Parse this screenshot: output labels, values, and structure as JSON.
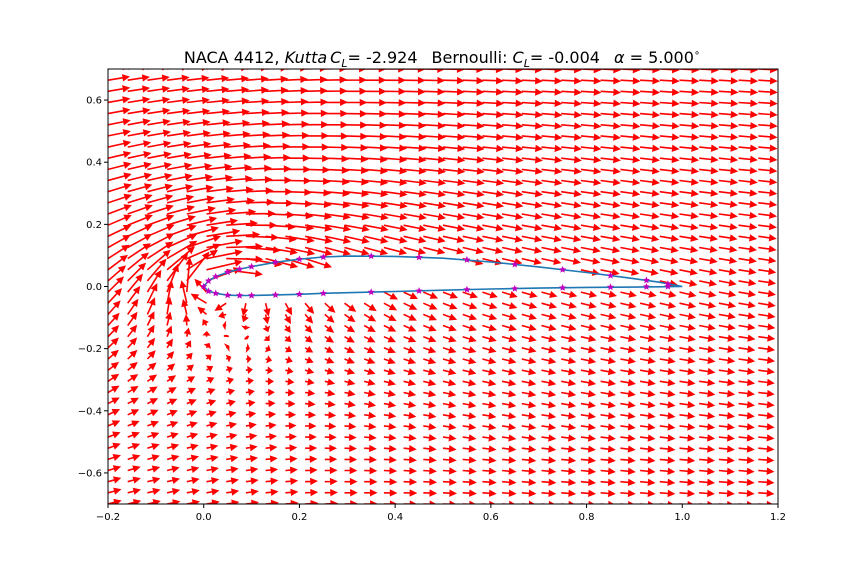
{
  "chart_data": {
    "type": "quiver",
    "title": {
      "prefix": "NACA 4412, ",
      "kutta_label": "Kutta",
      "kutta_cl_sym": "C",
      "kutta_cl_sub": "L",
      "kutta_value": "= -2.924",
      "bernoulli_label": "Bernoulli: ",
      "bernoulli_cl_sym": "C",
      "bernoulli_cl_sub": "L",
      "bernoulli_value": "= -0.004",
      "alpha_sym": "α",
      "alpha_value": " = 5.000",
      "degree_sym": "∘"
    },
    "xlim": [
      -0.2,
      1.2
    ],
    "ylim": [
      -0.7,
      0.7
    ],
    "xticks": [
      -0.2,
      0.0,
      0.2,
      0.4,
      0.6,
      0.8,
      1.0,
      1.2
    ],
    "xtick_labels": [
      "−0.2",
      "0.0",
      "0.2",
      "0.4",
      "0.6",
      "0.8",
      "1.0",
      "1.2"
    ],
    "yticks": [
      -0.6,
      -0.4,
      -0.2,
      0.0,
      0.2,
      0.4,
      0.6
    ],
    "ytick_labels": [
      "−0.6",
      "−0.4",
      "−0.2",
      "0.0",
      "0.2",
      "0.4",
      "0.6"
    ],
    "grid": false,
    "field": {
      "alpha_deg": 5.0,
      "x_range": [
        -0.2,
        1.2
      ],
      "y_range": [
        -0.7,
        0.7
      ],
      "nx": 35,
      "ny": 40,
      "vector_color": "#ff0000"
    },
    "airfoil": {
      "upper_surface": [
        [
          0.0,
          0.0
        ],
        [
          0.01,
          0.018
        ],
        [
          0.025,
          0.032
        ],
        [
          0.05,
          0.046
        ],
        [
          0.075,
          0.056
        ],
        [
          0.1,
          0.064
        ],
        [
          0.15,
          0.078
        ],
        [
          0.2,
          0.088
        ],
        [
          0.25,
          0.095
        ],
        [
          0.3,
          0.098
        ],
        [
          0.4,
          0.097
        ],
        [
          0.5,
          0.091
        ],
        [
          0.6,
          0.079
        ],
        [
          0.7,
          0.063
        ],
        [
          0.8,
          0.045
        ],
        [
          0.9,
          0.025
        ],
        [
          0.95,
          0.014
        ],
        [
          1.0,
          0.0
        ]
      ],
      "lower_surface": [
        [
          0.0,
          0.0
        ],
        [
          0.01,
          -0.015
        ],
        [
          0.025,
          -0.022
        ],
        [
          0.05,
          -0.028
        ],
        [
          0.075,
          -0.029
        ],
        [
          0.1,
          -0.029
        ],
        [
          0.15,
          -0.027
        ],
        [
          0.2,
          -0.025
        ],
        [
          0.25,
          -0.022
        ],
        [
          0.3,
          -0.02
        ],
        [
          0.4,
          -0.016
        ],
        [
          0.5,
          -0.012
        ],
        [
          0.6,
          -0.008
        ],
        [
          0.7,
          -0.005
        ],
        [
          0.8,
          -0.003
        ],
        [
          0.9,
          -0.002
        ],
        [
          0.95,
          -0.001
        ],
        [
          1.0,
          0.0
        ]
      ],
      "line_color": "#1f77b4"
    },
    "panel_markers": {
      "color": "#bf00bf",
      "points": [
        [
          0.0,
          0.0
        ],
        [
          0.01,
          0.018
        ],
        [
          0.025,
          0.032
        ],
        [
          0.05,
          0.046
        ],
        [
          0.075,
          0.056
        ],
        [
          0.1,
          0.064
        ],
        [
          0.15,
          0.078
        ],
        [
          0.2,
          0.088
        ],
        [
          0.25,
          0.095
        ],
        [
          0.35,
          0.098
        ],
        [
          0.45,
          0.094
        ],
        [
          0.55,
          0.086
        ],
        [
          0.65,
          0.071
        ],
        [
          0.75,
          0.054
        ],
        [
          0.85,
          0.035
        ],
        [
          0.925,
          0.02
        ],
        [
          0.97,
          0.008
        ],
        [
          0.01,
          -0.015
        ],
        [
          0.025,
          -0.022
        ],
        [
          0.05,
          -0.028
        ],
        [
          0.075,
          -0.029
        ],
        [
          0.1,
          -0.029
        ],
        [
          0.15,
          -0.027
        ],
        [
          0.2,
          -0.025
        ],
        [
          0.25,
          -0.022
        ],
        [
          0.35,
          -0.018
        ],
        [
          0.45,
          -0.014
        ],
        [
          0.55,
          -0.01
        ],
        [
          0.65,
          -0.007
        ],
        [
          0.75,
          -0.004
        ],
        [
          0.85,
          -0.002
        ],
        [
          0.925,
          -0.001
        ],
        [
          0.97,
          0.0
        ]
      ]
    }
  }
}
